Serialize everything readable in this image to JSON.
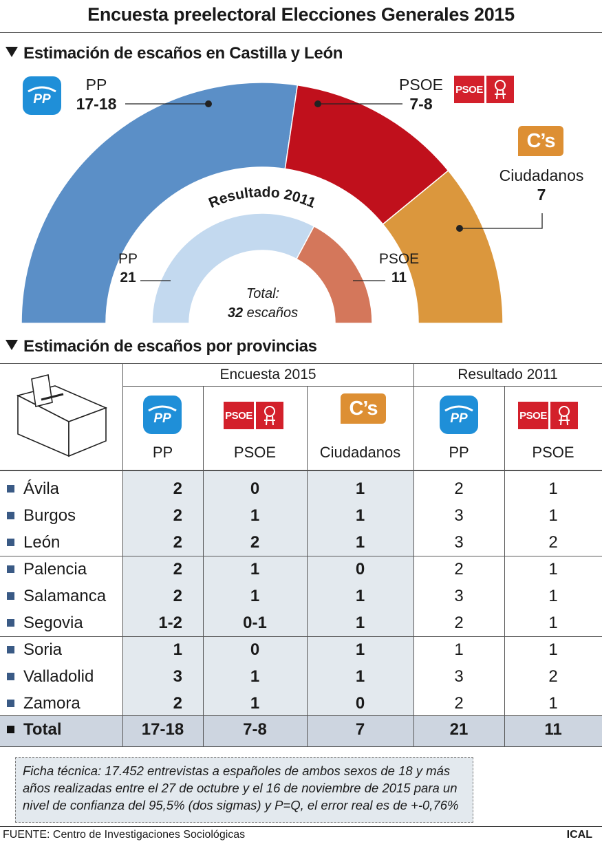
{
  "title": "Encuesta preelectoral Elecciones Generales 2015",
  "section1": "Estimación de escaños en Castilla y León",
  "section2": "Estimación de escaños por provincias",
  "colors": {
    "pp": "#5b8fc7",
    "psoe": "#c0101c",
    "cs": "#db973d",
    "pp_2011": "#c3d9ef",
    "psoe_2011": "#d4775b",
    "table_shade": "#e3e9ee",
    "total_shade": "#cdd5e0"
  },
  "chart_data": [
    {
      "type": "pie",
      "subtype": "semicircle",
      "title": "Estimación de escaños en Castilla y León",
      "series": [
        {
          "name": "PP",
          "label": "17-18",
          "value": 17.5
        },
        {
          "name": "PSOE",
          "label": "7-8",
          "value": 7.5
        },
        {
          "name": "Ciudadanos",
          "label": "7",
          "value": 7
        }
      ]
    },
    {
      "type": "pie",
      "subtype": "semicircle",
      "title": "Resultado 2011",
      "series": [
        {
          "name": "PP",
          "label": "21",
          "value": 21
        },
        {
          "name": "PSOE",
          "label": "11",
          "value": 11
        }
      ],
      "total_label": "Total:",
      "total_value": "32 escaños"
    },
    {
      "type": "table",
      "title": "Estimación de escaños por provincias",
      "group_headers": [
        "Encuesta 2015",
        "Resultado 2011"
      ],
      "columns": [
        "PP",
        "PSOE",
        "Ciudadanos",
        "PP",
        "PSOE"
      ],
      "rows": [
        {
          "name": "Ávila",
          "values": [
            "2",
            "0",
            "1",
            "2",
            "1"
          ]
        },
        {
          "name": "Burgos",
          "values": [
            "2",
            "1",
            "1",
            "3",
            "1"
          ]
        },
        {
          "name": "León",
          "values": [
            "2",
            "2",
            "1",
            "3",
            "2"
          ]
        },
        {
          "name": "Palencia",
          "values": [
            "2",
            "1",
            "0",
            "2",
            "1"
          ]
        },
        {
          "name": "Salamanca",
          "values": [
            "2",
            "1",
            "1",
            "3",
            "1"
          ]
        },
        {
          "name": "Segovia",
          "values": [
            "1-2",
            "0-1",
            "1",
            "2",
            "1"
          ]
        },
        {
          "name": "Soria",
          "values": [
            "1",
            "0",
            "1",
            "1",
            "1"
          ]
        },
        {
          "name": "Valladolid",
          "values": [
            "3",
            "1",
            "1",
            "3",
            "2"
          ]
        },
        {
          "name": "Zamora",
          "values": [
            "2",
            "1",
            "0",
            "2",
            "1"
          ]
        }
      ],
      "total": {
        "name": "Total",
        "values": [
          "17-18",
          "7-8",
          "7",
          "21",
          "11"
        ]
      }
    }
  ],
  "labels": {
    "pp": "PP",
    "pp_val": "17-18",
    "psoe": "PSOE",
    "psoe_val": "7-8",
    "cs": "Ciudadanos",
    "cs_val": "7",
    "res2011": "Resultado 2011",
    "pp11": "PP",
    "pp11_val": "21",
    "psoe11": "PSOE",
    "psoe11_val": "11",
    "total_label": "Total:",
    "total_num": "32",
    "total_unit": "escaños"
  },
  "logos": {
    "psoe_text": "PSOE",
    "cs_text": "C’s"
  },
  "note": "Ficha técnica: 17.452 entrevistas a españoles de ambos sexos de 18 y más años realizadas entre el 27 de octubre y el 16 de noviembre de 2015 para un nivel de confianza del 95,5% (dos sigmas) y P=Q, el error real es de +-0,76%",
  "footer": {
    "source": "FUENTE: Centro de Investigaciones Sociológicas",
    "agency": "ICAL"
  }
}
